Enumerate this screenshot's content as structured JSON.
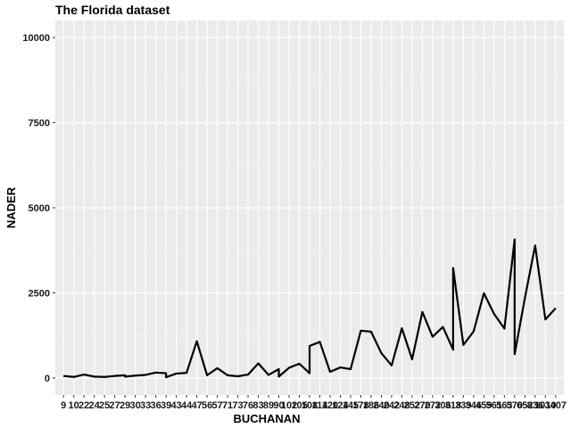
{
  "chart_data": {
    "type": "line",
    "title": "The Florida dataset",
    "xlabel": "BUCHANAN",
    "ylabel": "NADER",
    "ylim": [
      -500,
      10500
    ],
    "yticks": [
      0,
      2500,
      5000,
      7500,
      10000
    ],
    "y_tick_labels": [
      "0",
      "2500",
      "5000",
      "7500",
      "10000"
    ],
    "x_tick_labels": [
      "9",
      "10",
      "22",
      "24",
      "25",
      "27",
      "29",
      "30",
      "33",
      "36",
      "39",
      "43",
      "44",
      "47",
      "56",
      "57",
      "71",
      "73",
      "76",
      "83",
      "89",
      "90",
      "102",
      "105",
      "108",
      "114",
      "120",
      "124",
      "145",
      "178",
      "186",
      "240",
      "242",
      "248",
      "252",
      "270",
      "272",
      "306",
      "318",
      "339",
      "346",
      "459",
      "561",
      "563",
      "570",
      "652",
      "836",
      "1010",
      "3407"
    ],
    "grid": true,
    "series": [
      {
        "x": [
          "9",
          "10",
          "22",
          "24",
          "25",
          "27",
          "29",
          "29",
          "30",
          "33",
          "36",
          "39",
          "39",
          "43",
          "44",
          "47",
          "56",
          "57",
          "71",
          "73",
          "76",
          "83",
          "89",
          "90",
          "90",
          "102",
          "105",
          "108",
          "108",
          "114",
          "120",
          "124",
          "145",
          "178",
          "186",
          "240",
          "242",
          "248",
          "252",
          "270",
          "272",
          "306",
          "318",
          "318",
          "339",
          "346",
          "459",
          "561",
          "563",
          "570",
          "570",
          "652",
          "836",
          "1010",
          "3407"
        ],
        "y": [
          60,
          30,
          100,
          40,
          30,
          60,
          80,
          40,
          70,
          90,
          160,
          140,
          20,
          130,
          150,
          1080,
          80,
          290,
          80,
          50,
          100,
          430,
          90,
          260,
          40,
          300,
          420,
          140,
          940,
          1060,
          180,
          310,
          260,
          1390,
          1360,
          730,
          370,
          1460,
          550,
          1940,
          1210,
          1500,
          830,
          3230,
          970,
          1370,
          2490,
          1880,
          1450,
          4070,
          700,
          2350,
          3890,
          1720,
          2050
        ]
      }
    ]
  }
}
